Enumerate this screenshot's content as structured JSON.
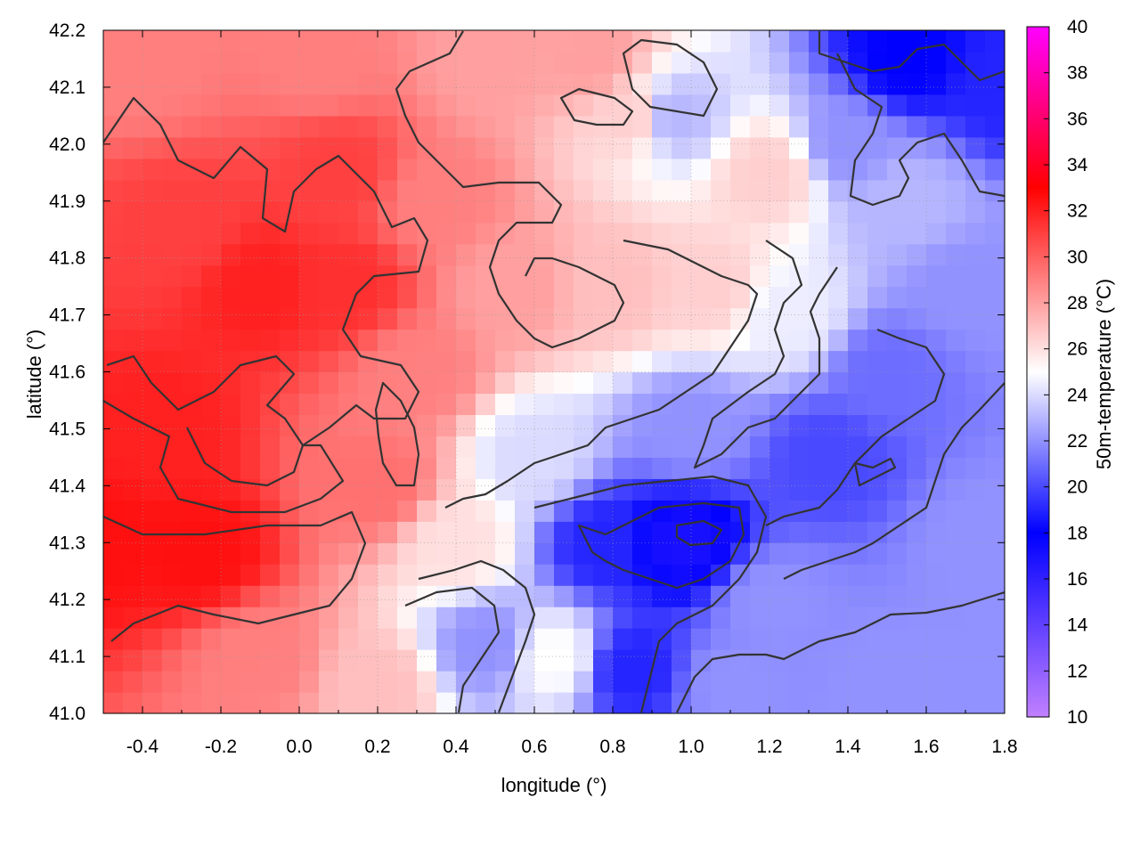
{
  "chart_data": {
    "type": "heatmap",
    "xlabel": "longitude (°)",
    "ylabel": "latitude (°)",
    "colorbar_label": "50m-temperature (°C)",
    "xlim": [
      -0.5,
      1.8
    ],
    "ylim": [
      41.0,
      42.2
    ],
    "xticks": [
      "-0.4",
      "-0.2",
      "0.0",
      "0.2",
      "0.4",
      "0.6",
      "0.8",
      "1.0",
      "1.2",
      "1.4",
      "1.6",
      "1.8"
    ],
    "yticks": [
      "41.0",
      "41.1",
      "41.2",
      "41.3",
      "41.4",
      "41.5",
      "41.6",
      "41.7",
      "41.8",
      "41.9",
      "42.0",
      "42.1",
      "42.2"
    ],
    "colorbar_range": [
      10,
      40
    ],
    "colorbar_ticks": [
      "10",
      "12",
      "14",
      "16",
      "18",
      "20",
      "22",
      "24",
      "26",
      "28",
      "30",
      "32",
      "34",
      "36",
      "38",
      "40"
    ],
    "colorscale": [
      {
        "value": 10,
        "color": "#c080ff"
      },
      {
        "value": 18,
        "color": "#0000ff"
      },
      {
        "value": 25,
        "color": "#ffffff"
      },
      {
        "value": 33,
        "color": "#ff0000"
      },
      {
        "value": 40,
        "color": "#ff00ff"
      }
    ],
    "grid": true,
    "field_anchors": [
      {
        "lon": -0.5,
        "lat": 41.3,
        "temp": 32.5
      },
      {
        "lon": -0.25,
        "lat": 41.28,
        "temp": 32.5
      },
      {
        "lon": -0.35,
        "lat": 41.5,
        "temp": 32
      },
      {
        "lon": -0.1,
        "lat": 41.75,
        "temp": 32
      },
      {
        "lon": 0.12,
        "lat": 41.75,
        "temp": 31.5
      },
      {
        "lon": -0.3,
        "lat": 41.85,
        "temp": 31
      },
      {
        "lon": 0.1,
        "lat": 41.95,
        "temp": 31
      },
      {
        "lon": 0.05,
        "lat": 42.15,
        "temp": 29
      },
      {
        "lon": -0.4,
        "lat": 42.15,
        "temp": 29
      },
      {
        "lon": -0.1,
        "lat": 41.1,
        "temp": 29
      },
      {
        "lon": 0.2,
        "lat": 41.4,
        "temp": 29.5
      },
      {
        "lon": 0.3,
        "lat": 41.6,
        "temp": 29
      },
      {
        "lon": 0.35,
        "lat": 41.9,
        "temp": 29
      },
      {
        "lon": 0.55,
        "lat": 41.75,
        "temp": 28
      },
      {
        "lon": 0.5,
        "lat": 42.15,
        "temp": 28
      },
      {
        "lon": 0.8,
        "lat": 41.75,
        "temp": 27
      },
      {
        "lon": 0.85,
        "lat": 42.05,
        "temp": 26.5
      },
      {
        "lon": 0.75,
        "lat": 42.15,
        "temp": 28
      },
      {
        "lon": 1.05,
        "lat": 41.75,
        "temp": 26.5
      },
      {
        "lon": 1.2,
        "lat": 41.95,
        "temp": 26.5
      },
      {
        "lon": 1.25,
        "lat": 41.7,
        "temp": 24.5
      },
      {
        "lon": 0.2,
        "lat": 41.05,
        "temp": 27
      },
      {
        "lon": 0.4,
        "lat": 41.3,
        "temp": 26
      },
      {
        "lon": 0.48,
        "lat": 41.12,
        "temp": 22
      },
      {
        "lon": 0.6,
        "lat": 41.45,
        "temp": 24
      },
      {
        "lon": 0.65,
        "lat": 41.1,
        "temp": 25
      },
      {
        "lon": 0.78,
        "lat": 41.3,
        "temp": 19
      },
      {
        "lon": 0.98,
        "lat": 41.3,
        "temp": 17
      },
      {
        "lon": 0.85,
        "lat": 41.08,
        "temp": 19
      },
      {
        "lon": 1.0,
        "lat": 41.5,
        "temp": 22
      },
      {
        "lon": 1.35,
        "lat": 41.45,
        "temp": 20
      },
      {
        "lon": 1.5,
        "lat": 41.6,
        "temp": 21
      },
      {
        "lon": 1.55,
        "lat": 41.9,
        "temp": 23
      },
      {
        "lon": 1.7,
        "lat": 41.75,
        "temp": 22
      },
      {
        "lon": 1.55,
        "lat": 42.15,
        "temp": 18
      },
      {
        "lon": 1.8,
        "lat": 42.1,
        "temp": 19
      },
      {
        "lon": 1.4,
        "lat": 42.0,
        "temp": 22
      },
      {
        "lon": 0.95,
        "lat": 42.05,
        "temp": 23
      },
      {
        "lon": 1.2,
        "lat": 41.2,
        "temp": 22
      },
      {
        "lon": 1.5,
        "lat": 41.05,
        "temp": 22
      },
      {
        "lon": 1.75,
        "lat": 41.3,
        "temp": 22
      },
      {
        "lon": 1.1,
        "lat": 41.05,
        "temp": 22
      }
    ]
  }
}
